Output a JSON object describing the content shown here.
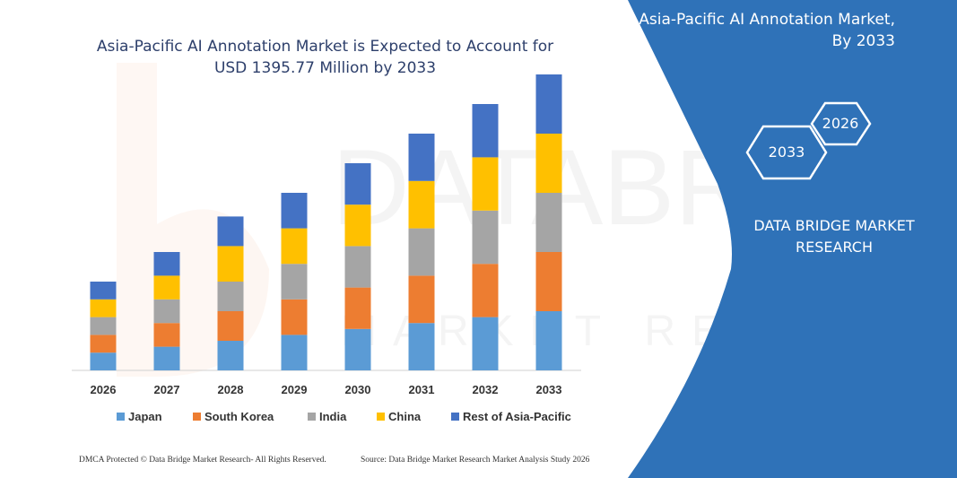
{
  "header": {
    "title_line1": "Asia-Pacific AI Annotation Market is Expected to Account for",
    "title_line2": "USD 1395.77 Million by 2033"
  },
  "side_panel": {
    "title_line1": "Asia-Pacific AI Annotation Market,",
    "title_line2": "By 2033",
    "hex_start": "2026",
    "hex_end": "2033",
    "brand_line1": "DATA BRIDGE MARKET",
    "brand_line2": "RESEARCH",
    "panel_color": "#2f72b8"
  },
  "watermark": {
    "text_big": "DATABRIDGE",
    "text_small": "MARKET RESEARCH"
  },
  "footer": {
    "left": "DMCA Protected © Data Bridge Market Research- All Rights Reserved.",
    "right": "Source: Data Bridge Market Research Market Analysis Study 2026"
  },
  "chart_data": {
    "type": "bar",
    "stacked": true,
    "categories": [
      "2026",
      "2027",
      "2028",
      "2029",
      "2030",
      "2031",
      "2032",
      "2033"
    ],
    "series": [
      {
        "name": "Japan",
        "color": "#5b9bd5",
        "values": [
          15,
          20,
          25,
          30,
          35,
          40,
          45,
          50
        ]
      },
      {
        "name": "South Korea",
        "color": "#ed7d31",
        "values": [
          15,
          20,
          25,
          30,
          35,
          40,
          45,
          50
        ]
      },
      {
        "name": "India",
        "color": "#a5a5a5",
        "values": [
          15,
          20,
          25,
          30,
          35,
          40,
          45,
          50
        ]
      },
      {
        "name": "China",
        "color": "#ffc000",
        "values": [
          15,
          20,
          30,
          30,
          35,
          40,
          45,
          50
        ]
      },
      {
        "name": "Rest of Asia-Pacific",
        "color": "#4472c4",
        "values": [
          15,
          20,
          25,
          30,
          35,
          40,
          45,
          50
        ]
      }
    ],
    "ylim": [
      0,
      250
    ],
    "grid": false,
    "legend_position": "bottom"
  }
}
